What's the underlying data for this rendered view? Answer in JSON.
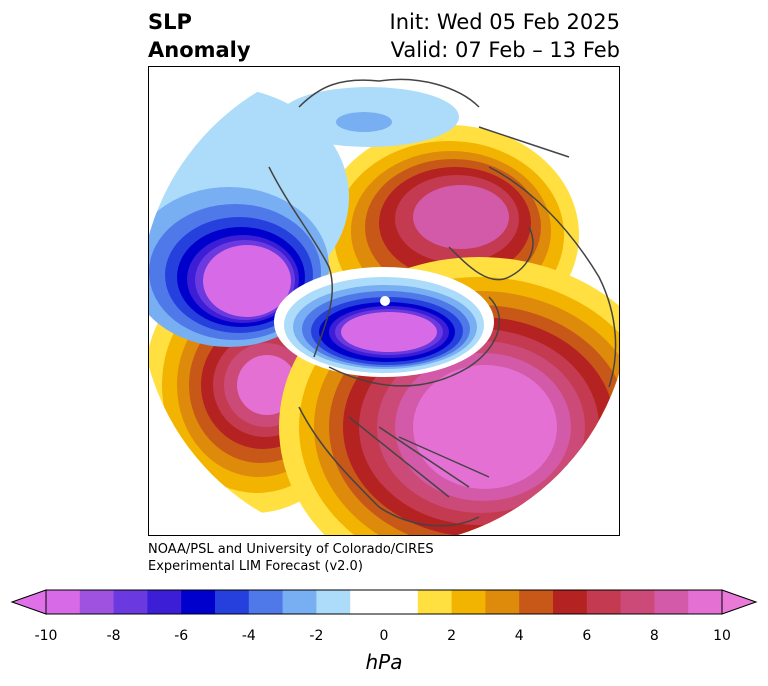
{
  "title": {
    "line1": "SLP",
    "line2": "Anomaly"
  },
  "info": {
    "init": "Init: Wed 05 Feb 2025",
    "valid": "Valid: 07 Feb – 13 Feb"
  },
  "credit": {
    "line1": "NOAA/PSL and University of Colorado/CIRES",
    "line2": "Experimental LIM Forecast (v2.0)"
  },
  "colorbar": {
    "unit": "hPa",
    "ticks": [
      "-10",
      "-8",
      "-6",
      "-4",
      "-2",
      "0",
      "2",
      "4",
      "6",
      "8",
      "10"
    ],
    "colors": [
      "#d76ae6",
      "#9f52e0",
      "#6a3ae0",
      "#3b1ed6",
      "#0000cc",
      "#2640de",
      "#4f78e8",
      "#78aef2",
      "#acdcfa",
      "#ffffff",
      "#ffffff",
      "#ffe040",
      "#f2b400",
      "#de8a0a",
      "#c85818",
      "#b42222",
      "#c43a50",
      "#cc4a78",
      "#d25aa8",
      "#e470d4"
    ],
    "under_color": "#e070e8",
    "over_color": "#ea7ad8"
  }
}
